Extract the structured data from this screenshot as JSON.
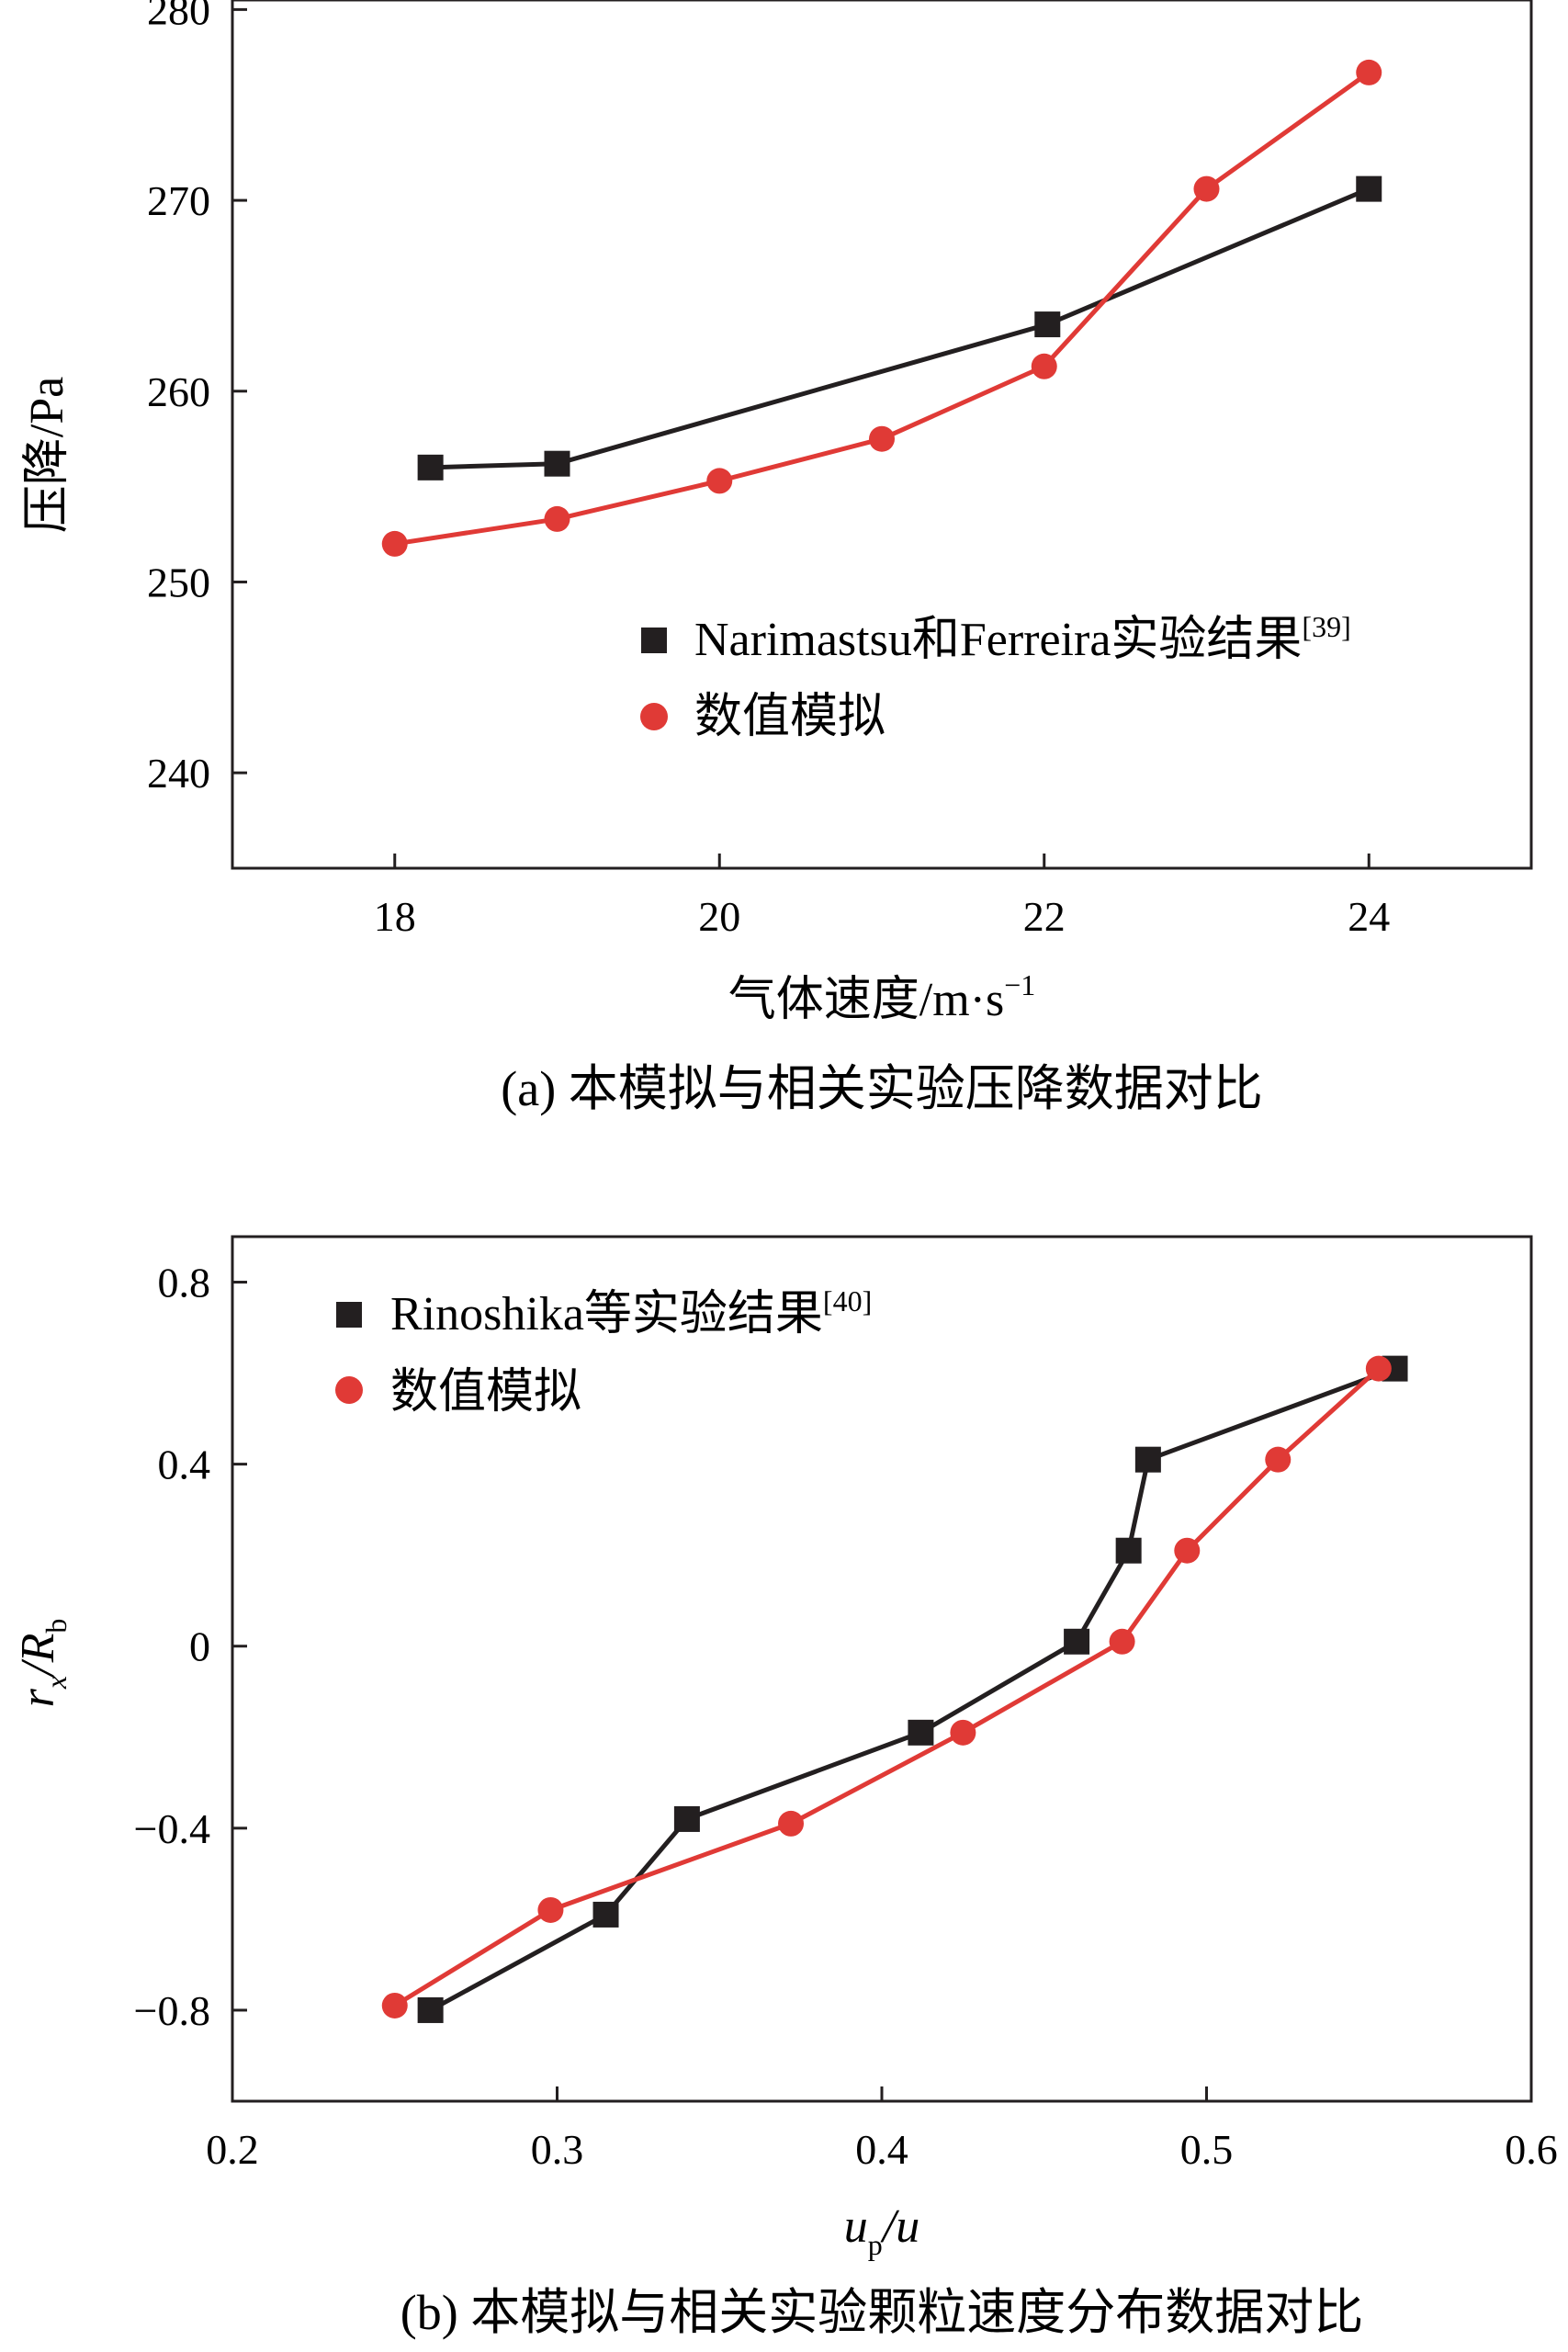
{
  "chart_data": [
    {
      "type": "line",
      "caption": "(a) 本模拟与相关实验压降数据对比",
      "xlabel": "气体速度/m·s",
      "xlabel_sup": "−1",
      "ylabel": "压降/Pa",
      "xlim": [
        17,
        25
      ],
      "ylim": [
        235,
        280.5
      ],
      "xticks": [
        18,
        20,
        22,
        24
      ],
      "xtick_labels": [
        "18",
        "20",
        "22",
        "24"
      ],
      "yticks": [
        240,
        250,
        260,
        270,
        280
      ],
      "ytick_labels": [
        "240",
        "250",
        "260",
        "270",
        "280"
      ],
      "legend_position": "bottom-right",
      "series": [
        {
          "name": "Narimastsu和Ferreira实验结果",
          "name_sup": "[39]",
          "marker": "square",
          "color": "#231f20",
          "x": [
            18.22,
            19.0,
            22.02,
            24.0
          ],
          "y": [
            256.0,
            256.2,
            263.5,
            270.6
          ]
        },
        {
          "name": "数值模拟",
          "name_sup": "",
          "marker": "circle",
          "color": "#e03a36",
          "x": [
            18.0,
            19.0,
            20.0,
            21.0,
            22.0,
            23.0,
            24.0
          ],
          "y": [
            252.0,
            253.3,
            255.3,
            257.5,
            261.3,
            270.6,
            276.7
          ]
        }
      ]
    },
    {
      "type": "line",
      "caption": "(b) 本模拟与相关实验颗粒速度分布数据对比",
      "xlabel": "u",
      "xlabel_sub": "p",
      "xlabel_rest": "/u",
      "ylabel": "r",
      "ylabel_sub1": "x",
      "ylabel_mid": "/R",
      "ylabel_sub2": "b",
      "xlim": [
        0.2,
        0.6
      ],
      "ylim": [
        -1.0,
        0.9
      ],
      "xticks": [
        0.2,
        0.3,
        0.4,
        0.5,
        0.6
      ],
      "xtick_labels": [
        "0.2",
        "0.3",
        "0.4",
        "0.5",
        "0.6"
      ],
      "yticks": [
        -0.8,
        -0.4,
        0,
        0.4,
        0.8
      ],
      "ytick_labels": [
        "−0.8",
        "−0.4",
        "0",
        "0.4",
        "0.8"
      ],
      "legend_position": "top-left",
      "series": [
        {
          "name": "Rinoshika等实验结果",
          "name_sup": "[40]",
          "marker": "square",
          "color": "#231f20",
          "x": [
            0.261,
            0.315,
            0.34,
            0.412,
            0.46,
            0.476,
            0.482,
            0.558
          ],
          "y": [
            -0.8,
            -0.59,
            -0.38,
            -0.19,
            0.01,
            0.21,
            0.41,
            0.61
          ]
        },
        {
          "name": "数值模拟",
          "name_sup": "",
          "marker": "circle",
          "color": "#e03a36",
          "x": [
            0.25,
            0.298,
            0.372,
            0.425,
            0.474,
            0.494,
            0.522,
            0.553
          ],
          "y": [
            -0.79,
            -0.58,
            -0.39,
            -0.19,
            0.01,
            0.21,
            0.41,
            0.61
          ]
        }
      ]
    }
  ]
}
